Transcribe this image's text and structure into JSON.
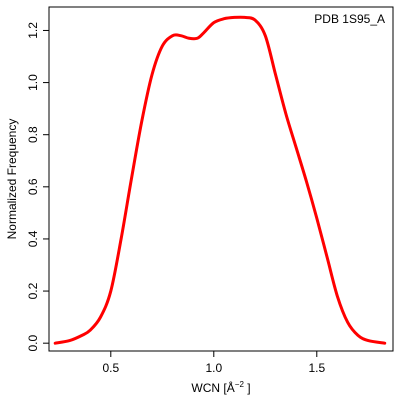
{
  "chart_data": {
    "type": "line",
    "annotation": "PDB 1S95_A",
    "xlabel_prefix": "WCN [",
    "xlabel_unit": "Å",
    "xlabel_exponent": "−2",
    "xlabel_suffix": " ]",
    "ylabel": "Normalized Frequency",
    "xlim": [
      0.2,
      1.87
    ],
    "ylim": [
      -0.03,
      1.29
    ],
    "x_ticks": [
      0.5,
      1.0,
      1.5
    ],
    "x_tick_labels": [
      "0.5",
      "1.0",
      "1.5"
    ],
    "y_ticks": [
      0.0,
      0.2,
      0.4,
      0.6,
      0.8,
      1.0,
      1.2
    ],
    "y_tick_labels": [
      "0.0",
      "0.2",
      "0.4",
      "0.6",
      "0.8",
      "1.0",
      "1.2"
    ],
    "grid": false,
    "line_color": "#ff0000",
    "series": [
      {
        "x": [
          0.23,
          0.3,
          0.36,
          0.4,
          0.45,
          0.5,
          0.55,
          0.6,
          0.65,
          0.7,
          0.75,
          0.8,
          0.84,
          0.88,
          0.92,
          0.95,
          1.0,
          1.05,
          1.1,
          1.15,
          1.2,
          1.25,
          1.3,
          1.35,
          1.4,
          1.45,
          1.5,
          1.55,
          1.6,
          1.65,
          1.7,
          1.75,
          1.83
        ],
        "y": [
          0.0,
          0.01,
          0.03,
          0.05,
          0.1,
          0.2,
          0.4,
          0.63,
          0.85,
          1.03,
          1.14,
          1.18,
          1.18,
          1.17,
          1.17,
          1.19,
          1.23,
          1.245,
          1.25,
          1.25,
          1.24,
          1.18,
          1.03,
          0.88,
          0.75,
          0.62,
          0.48,
          0.33,
          0.18,
          0.08,
          0.03,
          0.01,
          0.0
        ]
      }
    ]
  }
}
